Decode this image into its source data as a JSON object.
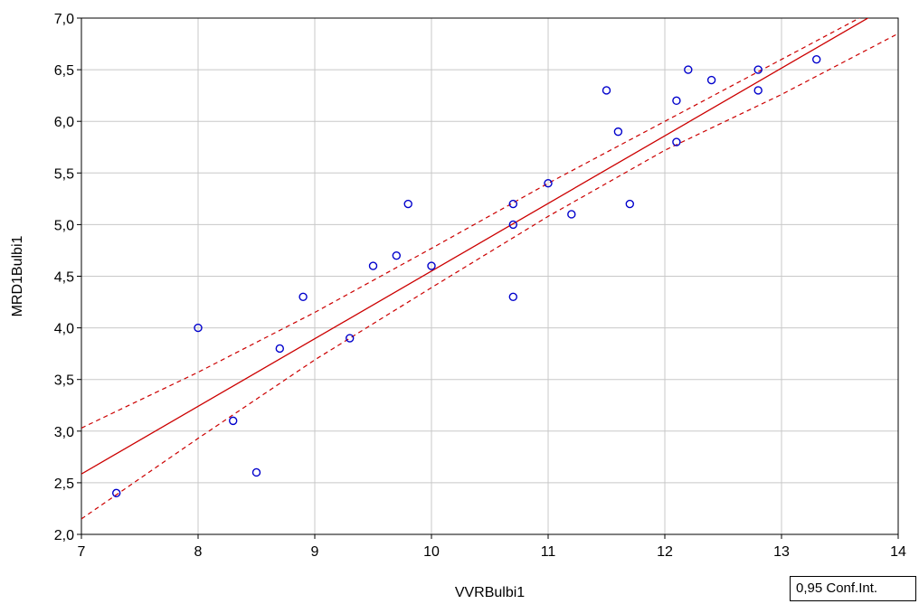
{
  "chart_data": {
    "type": "scatter",
    "xlabel": "VVRBulbi1",
    "ylabel": "MRD1Bulbi1",
    "xlim": [
      7,
      14
    ],
    "ylim": [
      2.0,
      7.0
    ],
    "x_ticks": [
      "7",
      "8",
      "9",
      "10",
      "11",
      "12",
      "13",
      "14"
    ],
    "y_ticks": [
      "2,0",
      "2,5",
      "3,0",
      "3,5",
      "4,0",
      "4,5",
      "5,0",
      "5,5",
      "6,0",
      "6,5",
      "7,0"
    ],
    "grid": true,
    "points": [
      {
        "x": 7.3,
        "y": 2.4
      },
      {
        "x": 8.0,
        "y": 4.0
      },
      {
        "x": 8.3,
        "y": 3.1
      },
      {
        "x": 8.5,
        "y": 2.6
      },
      {
        "x": 8.7,
        "y": 3.8
      },
      {
        "x": 8.9,
        "y": 4.3
      },
      {
        "x": 9.3,
        "y": 3.9
      },
      {
        "x": 9.5,
        "y": 4.6
      },
      {
        "x": 9.7,
        "y": 4.7
      },
      {
        "x": 9.8,
        "y": 5.2
      },
      {
        "x": 10.0,
        "y": 4.6
      },
      {
        "x": 10.7,
        "y": 5.2
      },
      {
        "x": 10.7,
        "y": 5.0
      },
      {
        "x": 10.7,
        "y": 4.3
      },
      {
        "x": 11.0,
        "y": 5.4
      },
      {
        "x": 11.2,
        "y": 5.1
      },
      {
        "x": 11.5,
        "y": 6.3
      },
      {
        "x": 11.6,
        "y": 5.9
      },
      {
        "x": 11.7,
        "y": 5.2
      },
      {
        "x": 12.1,
        "y": 6.2
      },
      {
        "x": 12.1,
        "y": 5.8
      },
      {
        "x": 12.2,
        "y": 6.5
      },
      {
        "x": 12.4,
        "y": 6.4
      },
      {
        "x": 12.8,
        "y": 6.5
      },
      {
        "x": 12.8,
        "y": 6.3
      },
      {
        "x": 13.3,
        "y": 6.6
      }
    ],
    "regression": {
      "intercept": -2.0,
      "slope": 0.655
    },
    "confidence_band": {
      "x": [
        7.0,
        8.0,
        9.0,
        10.0,
        11.0,
        12.0,
        13.0,
        14.0
      ],
      "upper": [
        3.03,
        3.57,
        4.15,
        4.77,
        5.4,
        6.0,
        6.6,
        7.2
      ],
      "lower": [
        2.15,
        2.93,
        3.69,
        4.39,
        5.08,
        5.72,
        6.26,
        6.85
      ]
    },
    "legend": "0,95 Conf.Int.",
    "legend_position": "bottom-right",
    "colors": {
      "points": "#0000cc",
      "fit": "#cc0000",
      "grid": "#c8c8c8",
      "axis": "#000000"
    }
  }
}
